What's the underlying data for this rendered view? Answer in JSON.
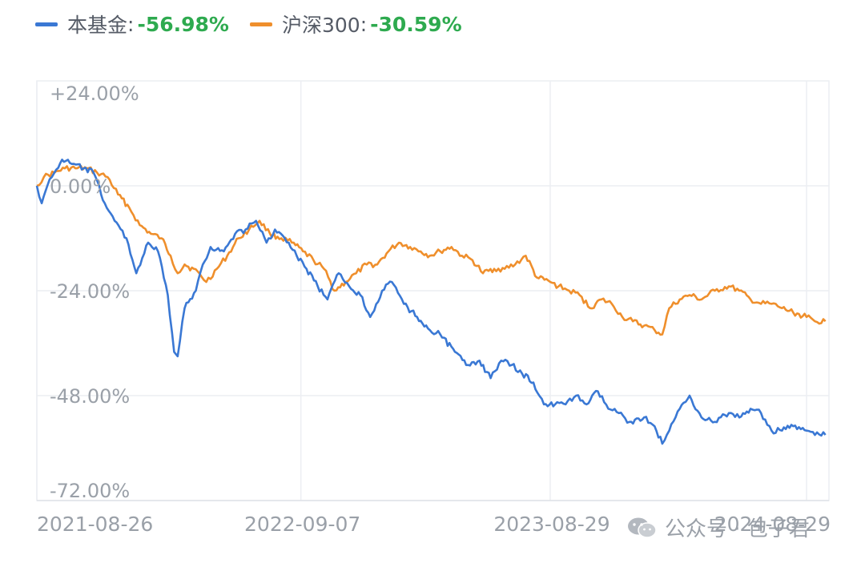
{
  "legend": [
    {
      "name": "本基金",
      "value": "-56.98%",
      "color": "#3a78d4"
    },
    {
      "name": "沪深300",
      "value": "-30.59%",
      "color": "#ef8f2c"
    }
  ],
  "watermark": {
    "text": "公众号 · 包子君",
    "icon": "wechat-icon"
  },
  "chart_data": {
    "type": "line",
    "grid": true,
    "legend_placement": "top-left",
    "ylim": [
      -72,
      24
    ],
    "y_ticks": [
      "+24.00%",
      "0.00%",
      "-24.00%",
      "-48.00%",
      "-72.00%"
    ],
    "y_tick_values": [
      24,
      0,
      -24,
      -48,
      -72
    ],
    "x_ticks": [
      "2021-08-26",
      "2022-09-07",
      "2023-08-29",
      "2024-08-29"
    ],
    "x_range": [
      "2021-08-26",
      "2024-09-30"
    ],
    "series": [
      {
        "name": "本基金",
        "color": "#3a78d4",
        "points": [
          [
            "2021-08-26",
            0
          ],
          [
            "2021-09-02",
            -4
          ],
          [
            "2021-09-10",
            0
          ],
          [
            "2021-09-20",
            3
          ],
          [
            "2021-10-01",
            6
          ],
          [
            "2021-10-15",
            5
          ],
          [
            "2021-11-01",
            4
          ],
          [
            "2021-11-15",
            3
          ],
          [
            "2021-12-01",
            -4
          ],
          [
            "2021-12-15",
            -8
          ],
          [
            "2022-01-01",
            -12
          ],
          [
            "2022-01-15",
            -20
          ],
          [
            "2022-02-01",
            -13
          ],
          [
            "2022-02-15",
            -15
          ],
          [
            "2022-03-01",
            -25
          ],
          [
            "2022-03-10",
            -38
          ],
          [
            "2022-03-15",
            -39
          ],
          [
            "2022-03-25",
            -28
          ],
          [
            "2022-04-10",
            -24
          ],
          [
            "2022-04-20",
            -18
          ],
          [
            "2022-05-01",
            -14
          ],
          [
            "2022-05-20",
            -15
          ],
          [
            "2022-06-05",
            -11
          ],
          [
            "2022-06-20",
            -10
          ],
          [
            "2022-07-05",
            -8
          ],
          [
            "2022-07-20",
            -13
          ],
          [
            "2022-08-01",
            -10
          ],
          [
            "2022-08-15",
            -12
          ],
          [
            "2022-09-01",
            -16
          ],
          [
            "2022-09-15",
            -19
          ],
          [
            "2022-10-01",
            -23
          ],
          [
            "2022-10-15",
            -26
          ],
          [
            "2022-10-31",
            -20
          ],
          [
            "2022-11-15",
            -23
          ],
          [
            "2022-12-01",
            -25
          ],
          [
            "2022-12-15",
            -30
          ],
          [
            "2023-01-01",
            -24
          ],
          [
            "2023-01-15",
            -22
          ],
          [
            "2023-02-01",
            -27
          ],
          [
            "2023-02-20",
            -30
          ],
          [
            "2023-03-10",
            -33
          ],
          [
            "2023-03-25",
            -34
          ],
          [
            "2023-04-15",
            -38
          ],
          [
            "2023-05-01",
            -41
          ],
          [
            "2023-05-20",
            -40
          ],
          [
            "2023-06-05",
            -44
          ],
          [
            "2023-06-20",
            -40
          ],
          [
            "2023-07-05",
            -41
          ],
          [
            "2023-07-20",
            -43
          ],
          [
            "2023-08-05",
            -45
          ],
          [
            "2023-08-20",
            -50
          ],
          [
            "2023-09-05",
            -50
          ],
          [
            "2023-09-20",
            -50
          ],
          [
            "2023-10-05",
            -48
          ],
          [
            "2023-10-20",
            -50
          ],
          [
            "2023-11-05",
            -47
          ],
          [
            "2023-11-20",
            -51
          ],
          [
            "2023-12-05",
            -52
          ],
          [
            "2023-12-20",
            -54
          ],
          [
            "2024-01-10",
            -53
          ],
          [
            "2024-01-25",
            -55
          ],
          [
            "2024-02-05",
            -59
          ],
          [
            "2024-02-15",
            -56
          ],
          [
            "2024-03-01",
            -51
          ],
          [
            "2024-03-15",
            -48
          ],
          [
            "2024-04-01",
            -53
          ],
          [
            "2024-04-20",
            -54
          ],
          [
            "2024-05-10",
            -52
          ],
          [
            "2024-05-25",
            -53
          ],
          [
            "2024-06-10",
            -51
          ],
          [
            "2024-06-25",
            -52
          ],
          [
            "2024-07-10",
            -56
          ],
          [
            "2024-07-25",
            -56
          ],
          [
            "2024-08-10",
            -55
          ],
          [
            "2024-08-29",
            -56
          ],
          [
            "2024-09-10",
            -57
          ],
          [
            "2024-09-25",
            -57
          ]
        ]
      },
      {
        "name": "沪深300",
        "color": "#ef8f2c",
        "points": [
          [
            "2021-08-26",
            0
          ],
          [
            "2021-09-05",
            2
          ],
          [
            "2021-09-20",
            3
          ],
          [
            "2021-10-05",
            4
          ],
          [
            "2021-10-20",
            4
          ],
          [
            "2021-11-05",
            4
          ],
          [
            "2021-11-20",
            3
          ],
          [
            "2021-12-05",
            2
          ],
          [
            "2021-12-20",
            -2
          ],
          [
            "2022-01-05",
            -5
          ],
          [
            "2022-01-20",
            -9
          ],
          [
            "2022-02-05",
            -11
          ],
          [
            "2022-02-20",
            -12
          ],
          [
            "2022-03-05",
            -16
          ],
          [
            "2022-03-15",
            -20
          ],
          [
            "2022-03-25",
            -18
          ],
          [
            "2022-04-15",
            -20
          ],
          [
            "2022-04-25",
            -22
          ],
          [
            "2022-05-10",
            -19
          ],
          [
            "2022-05-25",
            -16
          ],
          [
            "2022-06-10",
            -12
          ],
          [
            "2022-06-25",
            -10
          ],
          [
            "2022-07-10",
            -8
          ],
          [
            "2022-07-25",
            -11
          ],
          [
            "2022-08-10",
            -12
          ],
          [
            "2022-08-25",
            -13
          ],
          [
            "2022-09-10",
            -15
          ],
          [
            "2022-09-25",
            -17
          ],
          [
            "2022-10-10",
            -19
          ],
          [
            "2022-10-25",
            -24
          ],
          [
            "2022-11-10",
            -22
          ],
          [
            "2022-11-25",
            -20
          ],
          [
            "2022-12-10",
            -18
          ],
          [
            "2022-12-25",
            -18
          ],
          [
            "2023-01-10",
            -15
          ],
          [
            "2023-01-25",
            -13
          ],
          [
            "2023-02-10",
            -14
          ],
          [
            "2023-02-25",
            -15
          ],
          [
            "2023-03-10",
            -16
          ],
          [
            "2023-03-25",
            -15
          ],
          [
            "2023-04-10",
            -14
          ],
          [
            "2023-04-25",
            -16
          ],
          [
            "2023-05-10",
            -17
          ],
          [
            "2023-05-25",
            -20
          ],
          [
            "2023-06-10",
            -19
          ],
          [
            "2023-06-25",
            -19
          ],
          [
            "2023-07-10",
            -18
          ],
          [
            "2023-07-25",
            -16
          ],
          [
            "2023-08-10",
            -21
          ],
          [
            "2023-08-29",
            -22
          ],
          [
            "2023-09-10",
            -23
          ],
          [
            "2023-09-25",
            -24
          ],
          [
            "2023-10-10",
            -25
          ],
          [
            "2023-10-25",
            -28
          ],
          [
            "2023-11-10",
            -26
          ],
          [
            "2023-11-25",
            -27
          ],
          [
            "2023-12-10",
            -30
          ],
          [
            "2023-12-25",
            -31
          ],
          [
            "2024-01-10",
            -32
          ],
          [
            "2024-01-25",
            -33
          ],
          [
            "2024-02-05",
            -34
          ],
          [
            "2024-02-15",
            -28
          ],
          [
            "2024-03-01",
            -26
          ],
          [
            "2024-03-15",
            -25
          ],
          [
            "2024-04-01",
            -26
          ],
          [
            "2024-04-20",
            -24
          ],
          [
            "2024-05-10",
            -23
          ],
          [
            "2024-05-25",
            -24
          ],
          [
            "2024-06-10",
            -26
          ],
          [
            "2024-06-25",
            -27
          ],
          [
            "2024-07-10",
            -27
          ],
          [
            "2024-07-25",
            -28
          ],
          [
            "2024-08-10",
            -29
          ],
          [
            "2024-08-29",
            -30
          ],
          [
            "2024-09-10",
            -31
          ],
          [
            "2024-09-25",
            -31
          ]
        ]
      }
    ]
  }
}
